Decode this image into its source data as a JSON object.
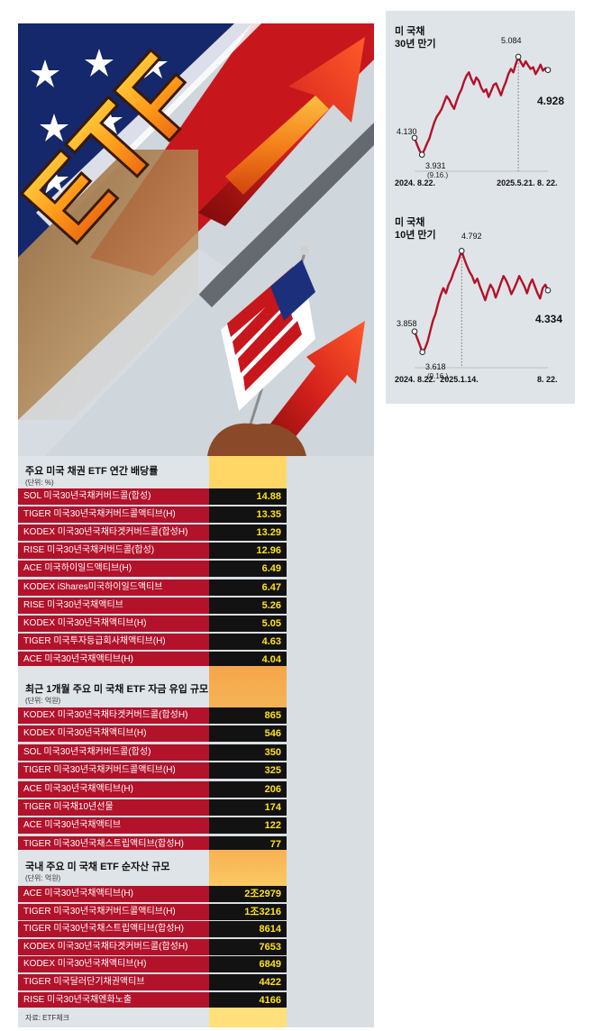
{
  "hero": {
    "logo_text": "ETF"
  },
  "chart_data": [
    {
      "type": "line",
      "title": "미 국채 30년 만기",
      "title_lines": [
        "미 국채",
        "30년 만기"
      ],
      "x_labels": [
        "2024. 8.22.",
        "2025.5.21.",
        "8. 22."
      ],
      "annotations": [
        {
          "label": "4.130",
          "value": 4.13
        },
        {
          "label": "3.931",
          "sub": "(9.16.)",
          "value": 3.931
        },
        {
          "label": "5.084",
          "value": 5.084
        },
        {
          "label": "4.928",
          "value": 4.928
        }
      ],
      "ylim": [
        3.8,
        5.2
      ],
      "values": [
        4.13,
        4.05,
        3.98,
        3.931,
        3.99,
        4.06,
        4.12,
        4.22,
        4.31,
        4.38,
        4.42,
        4.47,
        4.55,
        4.62,
        4.58,
        4.52,
        4.47,
        4.56,
        4.64,
        4.7,
        4.79,
        4.86,
        4.9,
        4.82,
        4.76,
        4.84,
        4.8,
        4.72,
        4.67,
        4.7,
        4.61,
        4.68,
        4.75,
        4.77,
        4.7,
        4.63,
        4.72,
        4.79,
        4.88,
        4.94,
        4.9,
        5.0,
        5.084,
        5.02,
        4.97,
        5.03,
        4.98,
        4.94,
        4.96,
        4.88,
        4.93,
        4.99,
        4.92,
        4.95,
        4.928
      ]
    },
    {
      "type": "line",
      "title": "미 국채 10년 만기",
      "title_lines": [
        "미 국채",
        "10년 만기"
      ],
      "x_labels": [
        "2024. 8.22.",
        "2025.1.14.",
        "8. 22."
      ],
      "annotations": [
        {
          "label": "3.858",
          "value": 3.858
        },
        {
          "label": "3.618",
          "sub": "(9.16.)",
          "value": 3.618
        },
        {
          "label": "4.792",
          "value": 4.792
        },
        {
          "label": "4.334",
          "value": 4.334
        }
      ],
      "ylim": [
        3.5,
        4.9
      ],
      "values": [
        3.858,
        3.78,
        3.7,
        3.618,
        3.66,
        3.74,
        3.86,
        3.98,
        4.06,
        4.18,
        4.28,
        4.36,
        4.3,
        4.4,
        4.46,
        4.55,
        4.62,
        4.7,
        4.792,
        4.7,
        4.62,
        4.55,
        4.5,
        4.42,
        4.47,
        4.38,
        4.3,
        4.22,
        4.32,
        4.4,
        4.35,
        4.25,
        4.33,
        4.42,
        4.5,
        4.45,
        4.38,
        4.29,
        4.35,
        4.42,
        4.5,
        4.44,
        4.38,
        4.3,
        4.4,
        4.46,
        4.38,
        4.3,
        4.24,
        4.36,
        4.4,
        4.334
      ]
    }
  ],
  "section1": {
    "title": "주요 미국 채권 ETF 연간 배당률",
    "unit": "(단위: %)",
    "rows": [
      {
        "name": "SOL 미국30년국채커버드콜(합성)",
        "value": "14.88"
      },
      {
        "name": "TIGER 미국30년국채커버드콜액티브(H)",
        "value": "13.35"
      },
      {
        "name": "KODEX 미국30년국채타겟커버드콜(합성H)",
        "value": "13.29"
      },
      {
        "name": "RISE 미국30년국채커버드콜(합성)",
        "value": "12.96"
      },
      {
        "name": "ACE 미국하이일드액티브(H)",
        "value": "6.49"
      },
      {
        "name": "KODEX iShares미국하이일드액티브",
        "value": "6.47"
      },
      {
        "name": "RISE 미국30년국채액티브",
        "value": "5.26"
      },
      {
        "name": "KODEX 미국30년국채액티브(H)",
        "value": "5.05"
      },
      {
        "name": "TIGER 미국투자등급회사채액티브(H)",
        "value": "4.63"
      },
      {
        "name": "ACE 미국30년국채액티브(H)",
        "value": "4.04"
      }
    ]
  },
  "section2": {
    "title": "최근 1개월 주요 미 국채 ETF 자금 유입 규모",
    "unit": "(단위: 억원)",
    "rows": [
      {
        "name": "KODEX 미국30년국채타겟커버드콜(합성H)",
        "value": "865"
      },
      {
        "name": "KODEX 미국30년국채액티브(H)",
        "value": "546"
      },
      {
        "name": "SOL 미국30년국채커버드콜(합성)",
        "value": "350"
      },
      {
        "name": "TIGER 미국30년국채커버드콜액티브(H)",
        "value": "325"
      },
      {
        "name": "ACE 미국30년국채액티브(H)",
        "value": "206"
      },
      {
        "name": "TIGER 미국채10년선물",
        "value": "174"
      },
      {
        "name": "ACE 미국30년국채액티브",
        "value": "122"
      },
      {
        "name": "TIGER 미국30년국채스트립액티브(합성H)",
        "value": "77"
      }
    ]
  },
  "section3": {
    "title": "국내 주요 미 국채 ETF 순자산 규모",
    "unit": "(단위: 억원)",
    "rows": [
      {
        "name": "ACE 미국30년국채액티브(H)",
        "value": "2조2979"
      },
      {
        "name": "TIGER 미국30년국채커버드콜액티브(H)",
        "value": "1조3216"
      },
      {
        "name": "TIGER 미국30년국채스트립액티브(합성H)",
        "value": "8614"
      },
      {
        "name": "KODEX 미국30년국채타겟커버드콜(합성H)",
        "value": "7653"
      },
      {
        "name": "KODEX 미국30년국채액티브(H)",
        "value": "6849"
      },
      {
        "name": "TIGER 미국달러단기채권액티브",
        "value": "4422"
      },
      {
        "name": "RISE 미국30년국채엔화노출",
        "value": "4166"
      }
    ]
  },
  "source": "자료: ETF체크",
  "colors": {
    "red": "#b3122b",
    "yellow": "#ffe21a",
    "black": "#121212",
    "panel": "#dfe4e8",
    "line": "#b3122b"
  }
}
